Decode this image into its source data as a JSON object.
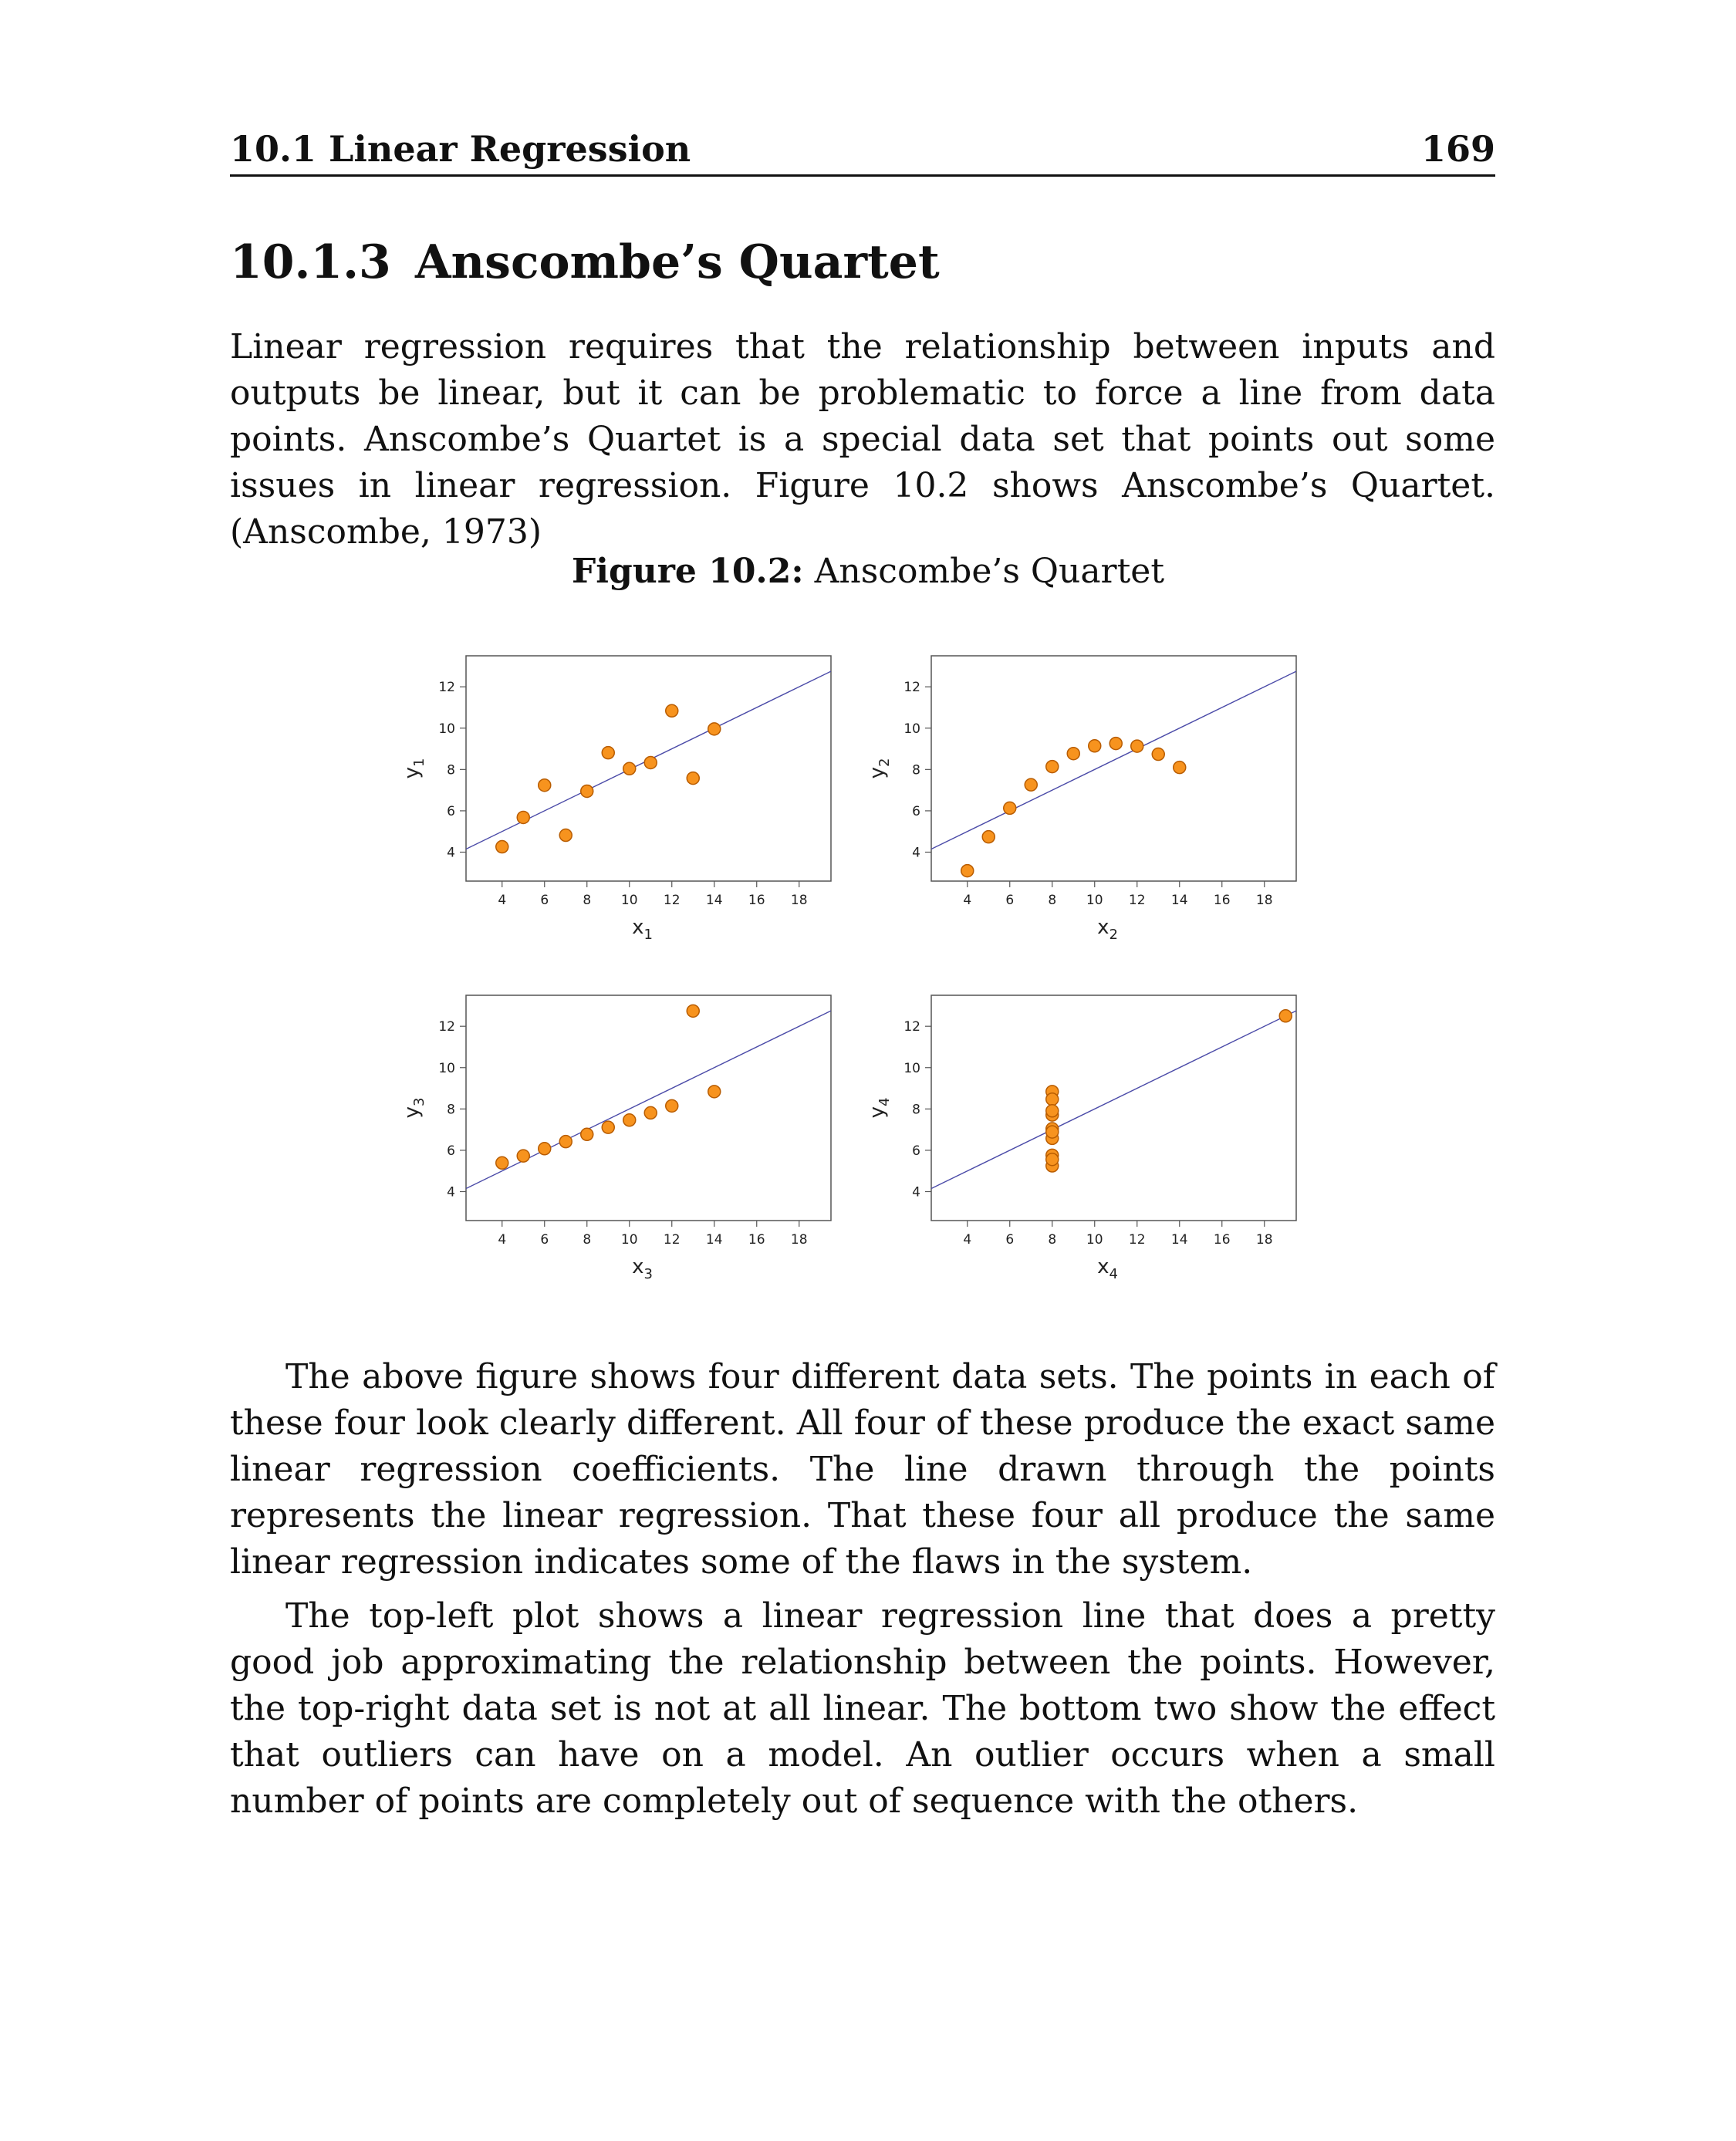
{
  "header": {
    "title": "10.1 Linear Regression",
    "page_number": "169"
  },
  "section": {
    "number": "10.1.3",
    "title": "Anscombe’s Quartet"
  },
  "paragraphs": {
    "intro": "Linear regression requires that the relationship between inputs and outputs be linear, but it can be problematic to force a line from data points. Anscombe’s Quartet is a special data set that points out some issues in linear regression. Figure 10.2 shows Anscombe’s Quartet. (Anscombe, 1973)",
    "p2": "The above figure shows four different data sets. The points in each of these four look clearly different. All four of these produce the exact same linear regression coefficients. The line drawn through the points represents the linear regression. That these four all produce the same linear regression indicates some of the flaws in the system.",
    "p3": "The top-left plot shows a linear regression line that does a pretty good job approximating the relationship between the points. However, the top-right data set is not at all linear. The bottom two show the effect that outliers can have on a model. An outlier occurs when a small number of points are completely out of sequence with the others."
  },
  "figure": {
    "label": "Figure 10.2:",
    "caption": "Anscombe’s Quartet"
  },
  "chart_data": [
    {
      "type": "scatter",
      "xlabel": "x",
      "xlabel_sub": "1",
      "ylabel": "y",
      "ylabel_sub": "1",
      "xlim": [
        2.3,
        19.5
      ],
      "ylim": [
        2.6,
        13.5
      ],
      "xticks": [
        4,
        6,
        8,
        10,
        12,
        14,
        16,
        18
      ],
      "yticks": [
        4,
        6,
        8,
        10,
        12
      ],
      "x": [
        10,
        8,
        13,
        9,
        11,
        14,
        6,
        4,
        12,
        7,
        5
      ],
      "y": [
        8.04,
        6.95,
        7.58,
        8.81,
        8.33,
        9.96,
        7.24,
        4.26,
        10.84,
        4.82,
        5.68
      ],
      "fit": {
        "intercept": 3.0,
        "slope": 0.5
      },
      "point_color": "#f7931e",
      "point_edge": "#b85c00",
      "line_color": "#4b4ba8"
    },
    {
      "type": "scatter",
      "xlabel": "x",
      "xlabel_sub": "2",
      "ylabel": "y",
      "ylabel_sub": "2",
      "xlim": [
        2.3,
        19.5
      ],
      "ylim": [
        2.6,
        13.5
      ],
      "xticks": [
        4,
        6,
        8,
        10,
        12,
        14,
        16,
        18
      ],
      "yticks": [
        4,
        6,
        8,
        10,
        12
      ],
      "x": [
        10,
        8,
        13,
        9,
        11,
        14,
        6,
        4,
        12,
        7,
        5
      ],
      "y": [
        9.14,
        8.14,
        8.74,
        8.77,
        9.26,
        8.1,
        6.13,
        3.1,
        9.13,
        7.26,
        4.74
      ],
      "fit": {
        "intercept": 3.0,
        "slope": 0.5
      },
      "point_color": "#f7931e",
      "point_edge": "#b85c00",
      "line_color": "#4b4ba8"
    },
    {
      "type": "scatter",
      "xlabel": "x",
      "xlabel_sub": "3",
      "ylabel": "y",
      "ylabel_sub": "3",
      "xlim": [
        2.3,
        19.5
      ],
      "ylim": [
        2.6,
        13.5
      ],
      "xticks": [
        4,
        6,
        8,
        10,
        12,
        14,
        16,
        18
      ],
      "yticks": [
        4,
        6,
        8,
        10,
        12
      ],
      "x": [
        10,
        8,
        13,
        9,
        11,
        14,
        6,
        4,
        12,
        7,
        5
      ],
      "y": [
        7.46,
        6.77,
        12.74,
        7.11,
        7.81,
        8.84,
        6.08,
        5.39,
        8.15,
        6.42,
        5.73
      ],
      "fit": {
        "intercept": 3.0,
        "slope": 0.5
      },
      "point_color": "#f7931e",
      "point_edge": "#b85c00",
      "line_color": "#4b4ba8"
    },
    {
      "type": "scatter",
      "xlabel": "x",
      "xlabel_sub": "4",
      "ylabel": "y",
      "ylabel_sub": "4",
      "xlim": [
        2.3,
        19.5
      ],
      "ylim": [
        2.6,
        13.5
      ],
      "xticks": [
        4,
        6,
        8,
        10,
        12,
        14,
        16,
        18
      ],
      "yticks": [
        4,
        6,
        8,
        10,
        12
      ],
      "x": [
        8,
        8,
        8,
        8,
        8,
        8,
        8,
        19,
        8,
        8,
        8
      ],
      "y": [
        6.58,
        5.76,
        7.71,
        8.84,
        8.47,
        7.04,
        5.25,
        12.5,
        5.56,
        7.91,
        6.89
      ],
      "fit": {
        "intercept": 3.0,
        "slope": 0.5
      },
      "point_color": "#f7931e",
      "point_edge": "#b85c00",
      "line_color": "#4b4ba8"
    }
  ]
}
